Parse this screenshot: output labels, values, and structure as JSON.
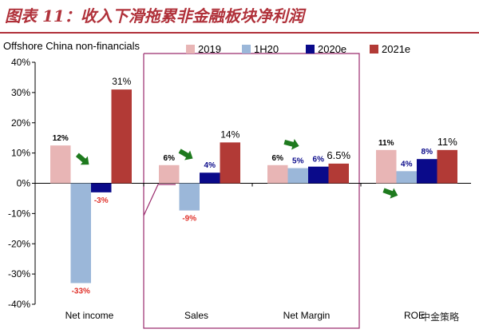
{
  "figure_title": "图表 11：收入下滑拖累非金融板块净利润",
  "subtitle": "Offshore China non-financials",
  "watermark": "中金策略",
  "colors": {
    "title": "#b0313a",
    "panel_border": "#9b2c6e",
    "arrow": "#1e7a1e",
    "negative_label": "#e0312a",
    "s2019": "#e8b5b5",
    "s1H20": "#9bb7d9",
    "s2020e": "#0a0a8a",
    "s2021e": "#b23a36"
  },
  "chart_data": {
    "type": "bar",
    "categories": [
      "Net income",
      "Sales",
      "Net Margin",
      "ROE"
    ],
    "ylim": [
      -40,
      40
    ],
    "yticks": [
      -40,
      -30,
      -20,
      -10,
      0,
      10,
      20,
      30,
      40
    ],
    "ytick_labels": [
      "-40%",
      "-30%",
      "-20%",
      "-10%",
      "0%",
      "10%",
      "20%",
      "30%",
      "40%"
    ],
    "legend_position": "top",
    "series": [
      {
        "name": "2019",
        "values": [
          12.5,
          6,
          6,
          11
        ],
        "labels": [
          "12%",
          "6%",
          "6%",
          "11%"
        ]
      },
      {
        "name": "1H20",
        "values": [
          -33,
          -9,
          5,
          4
        ],
        "labels": [
          "-33%",
          "-9%",
          "5%",
          "4%"
        ]
      },
      {
        "name": "2020e",
        "values": [
          -3,
          3.5,
          5.5,
          8
        ],
        "labels": [
          "-3%",
          "4%",
          "6%",
          "8%"
        ]
      },
      {
        "name": "2021e",
        "values": [
          31,
          13.5,
          6.5,
          11
        ],
        "labels": [
          "31%",
          "14%",
          "6.5%",
          "11%"
        ]
      }
    ]
  }
}
